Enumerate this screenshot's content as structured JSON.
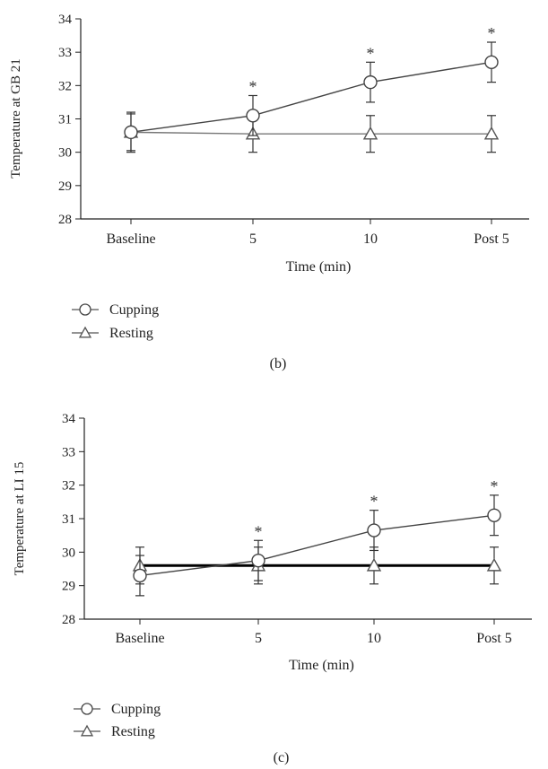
{
  "chart_data": [
    {
      "type": "line",
      "panel_label": "(b)",
      "categories": [
        "Baseline",
        "5",
        "10",
        "Post 5"
      ],
      "xlabel": "Time (min)",
      "ylabel": "Temperature at GB 21",
      "ylim": [
        28,
        34
      ],
      "yticks": [
        28,
        29,
        30,
        31,
        32,
        33,
        34
      ],
      "series": [
        {
          "name": "Cupping",
          "marker": "circle",
          "color": "#444444",
          "values": [
            30.6,
            31.1,
            32.1,
            32.7
          ],
          "error": [
            0.6,
            0.6,
            0.6,
            0.6
          ],
          "annotations": [
            "",
            "*",
            "*",
            "*"
          ]
        },
        {
          "name": "Resting",
          "marker": "triangle",
          "color": "#777777",
          "values": [
            30.6,
            30.55,
            30.55,
            30.55
          ],
          "error": [
            0.55,
            0.55,
            0.55,
            0.55
          ],
          "annotations": [
            "",
            "",
            "",
            ""
          ]
        }
      ],
      "grid": false,
      "legend": "below"
    },
    {
      "type": "line",
      "panel_label": "(c)",
      "categories": [
        "Baseline",
        "5",
        "10",
        "Post 5"
      ],
      "xlabel": "Time (min)",
      "ylabel": "Temperature at LI 15",
      "ylim": [
        28,
        34
      ],
      "yticks": [
        28,
        29,
        30,
        31,
        32,
        33,
        34
      ],
      "series": [
        {
          "name": "Cupping",
          "marker": "circle",
          "color": "#444444",
          "values": [
            29.3,
            29.75,
            30.65,
            31.1
          ],
          "error": [
            0.6,
            0.6,
            0.6,
            0.6
          ],
          "annotations": [
            "",
            "*",
            "*",
            "*"
          ]
        },
        {
          "name": "Resting",
          "marker": "triangle",
          "color": "#000000",
          "values": [
            29.6,
            29.6,
            29.6,
            29.6
          ],
          "error": [
            0.55,
            0.55,
            0.55,
            0.55
          ],
          "annotations": [
            "",
            "",
            "",
            ""
          ]
        }
      ],
      "grid": false,
      "legend": "below"
    }
  ]
}
